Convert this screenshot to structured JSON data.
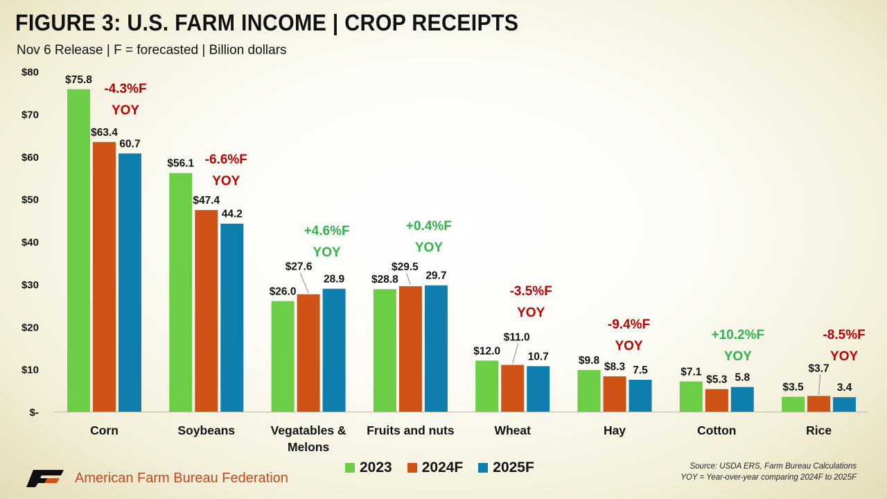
{
  "title": "FIGURE 3: U.S. FARM INCOME | CROP RECEIPTS",
  "subtitle": "Nov 6 Release | F = forecasted | Billion dollars",
  "source_line1": "Source: USDA ERS, Farm Bureau Calculations",
  "source_line2": "YOY = Year-over-year comparing 2024F to 2025F",
  "logo_text": "American Farm Bureau Federation",
  "logo_icon": "fb-logo-icon",
  "colors": {
    "s2023": "#6cce46",
    "s2024": "#cf5317",
    "s2025": "#0e7fad",
    "neg": "#c00000",
    "pos": "#2fb34b"
  },
  "chart_data": {
    "type": "bar",
    "title": "FIGURE 3: U.S. FARM INCOME | CROP RECEIPTS",
    "subtitle": "Nov 6 Release | F = forecasted | Billion dollars",
    "ylim": [
      0,
      80
    ],
    "yticks": [
      0,
      10,
      20,
      30,
      40,
      50,
      60,
      70,
      80
    ],
    "ytick_labels": [
      "$-",
      "$10",
      "$20",
      "$30",
      "$40",
      "$50",
      "$60",
      "$70",
      "$80"
    ],
    "grid": false,
    "legend": "bottom",
    "categories": [
      "Corn",
      "Soybeans",
      "Vegatables & Melons",
      "Fruits and nuts",
      "Wheat",
      "Hay",
      "Cotton",
      "Rice"
    ],
    "series": [
      {
        "name": "2023",
        "values": [
          75.8,
          56.1,
          26.0,
          28.8,
          12.0,
          9.8,
          7.1,
          3.5
        ],
        "labels": [
          "$75.8",
          "$56.1",
          "$26.0",
          "$28.8",
          "$12.0",
          "$9.8",
          "$7.1",
          "$3.5"
        ]
      },
      {
        "name": "2024F",
        "values": [
          63.4,
          47.4,
          27.6,
          29.5,
          11.0,
          8.3,
          5.3,
          3.7
        ],
        "labels": [
          "$63.4",
          "$47.4",
          "$27.6",
          "$29.5",
          "$11.0",
          "$8.3",
          "$5.3",
          "$3.7"
        ]
      },
      {
        "name": "2025F",
        "values": [
          60.7,
          44.2,
          28.9,
          29.7,
          10.7,
          7.5,
          5.8,
          3.4
        ],
        "labels": [
          "60.7",
          "44.2",
          "28.9",
          "29.7",
          "10.7",
          "7.5",
          "5.8",
          "3.4"
        ]
      }
    ],
    "annotations": [
      {
        "category": "Corn",
        "line1": "-4.3%F",
        "line2": "YOY",
        "trend": "negative"
      },
      {
        "category": "Soybeans",
        "line1": "-6.6%F",
        "line2": "YOY",
        "trend": "negative"
      },
      {
        "category": "Vegatables & Melons",
        "line1": "+4.6%F",
        "line2": "YOY",
        "trend": "positive"
      },
      {
        "category": "Fruits and nuts",
        "line1": "+0.4%F",
        "line2": "YOY",
        "trend": "positive"
      },
      {
        "category": "Wheat",
        "line1": "-3.5%F",
        "line2": "YOY",
        "trend": "negative"
      },
      {
        "category": "Hay",
        "line1": "-9.4%F",
        "line2": "YOY",
        "trend": "negative"
      },
      {
        "category": "Cotton",
        "line1": "+10.2%F",
        "line2": "YOY",
        "trend": "positive"
      },
      {
        "category": "Rice",
        "line1": "-8.5%F",
        "line2": "YOY",
        "trend": "negative"
      }
    ]
  }
}
